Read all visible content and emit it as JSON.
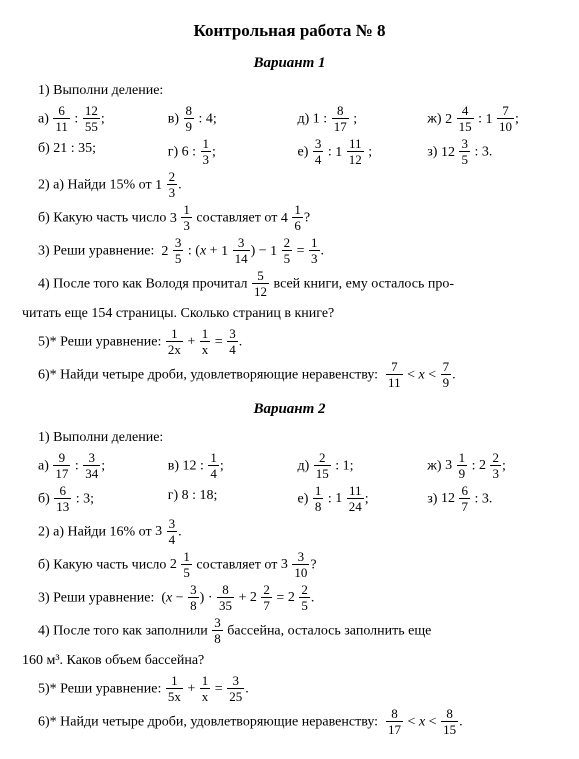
{
  "title": "Контрольная работа № 8",
  "v1": {
    "heading": "Вариант 1",
    "q1": "1) Выполни деление:",
    "a": "а)",
    "b": "б)",
    "v": "в)",
    "g": "г)",
    "d": "д)",
    "e": "е)",
    "zh": "ж)",
    "z": "з)",
    "item_b": "21 : 35;",
    "item_g": "6 :",
    "item_v": ": 4;",
    "item_d": "1 :",
    "q2a": "2) а) Найди 15% от",
    "q2b": "б) Какую часть число",
    "q2b_mid": "составляет от",
    "q3": "3) Реши уравнение:",
    "q4a": "4) После того как Володя прочитал",
    "q4b": "всей книги, ему осталось про-",
    "q4c": "читать еще 154 страницы. Сколько страниц в книге?",
    "q5": "5)* Реши уравнение:",
    "q6": "6)* Найди четыре дроби, удовлетворяющие неравенству:"
  },
  "v2": {
    "heading": "Вариант 2",
    "q1": "1) Выполни деление:",
    "a": "а)",
    "b": "б)",
    "v": "в)",
    "g": "г)",
    "d": "д)",
    "e": "е)",
    "zh": "ж)",
    "z": "з)",
    "item_b": ": 3;",
    "item_v": "12 :",
    "item_g": "8 : 18;",
    "item_d": ": 1;",
    "q2a": "2) а) Найди 16% от",
    "q2b": "б) Какую часть число",
    "q2b_mid": "составляет от",
    "q3": "3) Реши уравнение:",
    "q4a": "4) После того как заполнили",
    "q4b": "бассейна, осталось заполнить еще",
    "q4c": "160 м³. Каков объем бассейна?",
    "q5": "5)* Реши уравнение:",
    "q6": "6)* Найди четыре дроби, удовлетворяющие неравенству:"
  },
  "f": {
    "6": "6",
    "11": "11",
    "12": "12",
    "55": "55",
    "8": "8",
    "9": "9",
    "17": "17",
    "4": "4",
    "15": "15",
    "1": "1",
    "7": "7",
    "10": "10",
    "3": "3",
    "5": "5",
    "2": "2",
    "14": "14",
    "13": "13",
    "34": "34",
    "24": "24",
    "35": "35",
    "2x": "2x",
    "x": "x",
    "5x": "5x",
    "25": "25"
  }
}
